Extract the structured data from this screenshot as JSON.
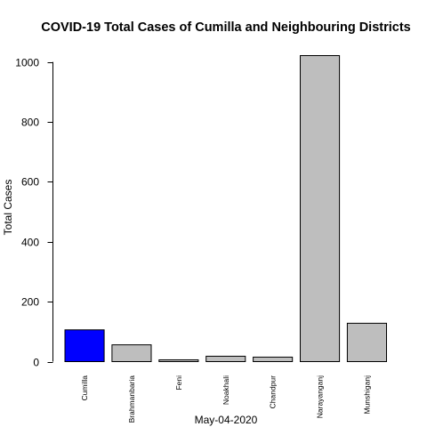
{
  "chart_data": {
    "type": "bar",
    "title": "COVID-19 Total Cases of Cumilla and Neighbouring Districts",
    "xlabel": "May-04-2020",
    "ylabel": "Total Cases",
    "categories": [
      "Cumilla",
      "Brahmanbaria",
      "Feni",
      "Noakhali",
      "Chandpur",
      "Narayanganj",
      "Munshiganj"
    ],
    "values": [
      106,
      56,
      6,
      18,
      15,
      1021,
      128
    ],
    "colors": [
      "#0000ff",
      "#bebebe",
      "#bebebe",
      "#bebebe",
      "#bebebe",
      "#bebebe",
      "#bebebe"
    ],
    "yticks": [
      0,
      200,
      400,
      600,
      800,
      1000
    ],
    "ylim": [
      0,
      1021
    ],
    "grid": false,
    "legend": "none"
  }
}
